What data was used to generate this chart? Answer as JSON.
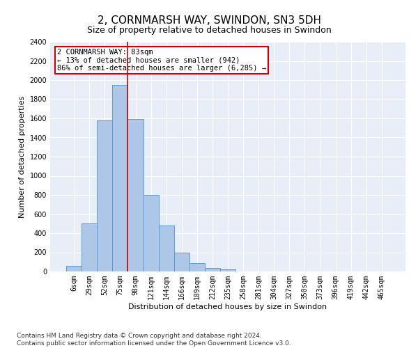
{
  "title": "2, CORNMARSH WAY, SWINDON, SN3 5DH",
  "subtitle": "Size of property relative to detached houses in Swindon",
  "xlabel": "Distribution of detached houses by size in Swindon",
  "ylabel": "Number of detached properties",
  "categories": [
    "6sqm",
    "29sqm",
    "52sqm",
    "75sqm",
    "98sqm",
    "121sqm",
    "144sqm",
    "166sqm",
    "189sqm",
    "212sqm",
    "235sqm",
    "258sqm",
    "281sqm",
    "304sqm",
    "327sqm",
    "350sqm",
    "373sqm",
    "396sqm",
    "419sqm",
    "442sqm",
    "465sqm"
  ],
  "values": [
    60,
    500,
    1580,
    1950,
    1590,
    800,
    480,
    200,
    90,
    35,
    25,
    0,
    0,
    0,
    0,
    0,
    0,
    0,
    0,
    0,
    0
  ],
  "bar_color": "#aec6e8",
  "bar_edge_color": "#5b9bd5",
  "background_color": "#e8eef8",
  "vline_x_index": 3.5,
  "vline_color": "#cc0000",
  "annotation_text": "2 CORNMARSH WAY: 83sqm\n← 13% of detached houses are smaller (942)\n86% of semi-detached houses are larger (6,285) →",
  "annotation_box_color": "white",
  "annotation_box_edge_color": "#cc0000",
  "ylim": [
    0,
    2400
  ],
  "yticks": [
    0,
    200,
    400,
    600,
    800,
    1000,
    1200,
    1400,
    1600,
    1800,
    2000,
    2200,
    2400
  ],
  "footer_line1": "Contains HM Land Registry data © Crown copyright and database right 2024.",
  "footer_line2": "Contains public sector information licensed under the Open Government Licence v3.0.",
  "title_fontsize": 11,
  "subtitle_fontsize": 9,
  "axis_label_fontsize": 8,
  "tick_fontsize": 7,
  "annotation_fontsize": 7.5,
  "footer_fontsize": 6.5
}
